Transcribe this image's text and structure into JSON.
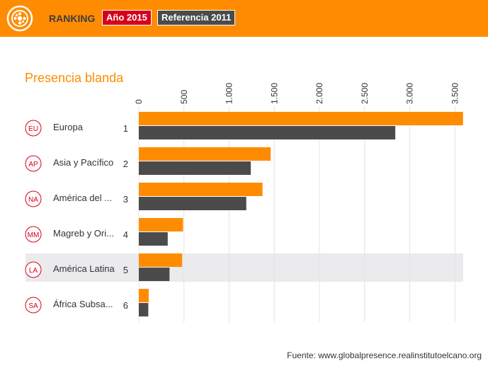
{
  "header": {
    "ranking_label": "RANKING",
    "year_label": "Año 2015",
    "reference_label": "Referencia 2011",
    "background": "#ff8c00",
    "year_color": "#d6001c",
    "reference_color": "#4b4b4b",
    "logo_icon": "globe-dots-icon"
  },
  "source": "Fuente: www.globalpresence.realinstitutoelcano.org",
  "chart_data": {
    "type": "bar",
    "orientation": "horizontal",
    "title": "Presencia blanda",
    "xlim": [
      0,
      3600
    ],
    "ticks": [
      0,
      500,
      1000,
      1500,
      2000,
      2500,
      3000,
      3500
    ],
    "tick_labels": [
      "0",
      "500",
      "1.000",
      "1.500",
      "2.000",
      "2.500",
      "3.000",
      "3.500"
    ],
    "grid": true,
    "highlighted_row": 4,
    "categories": [
      {
        "code": "EU",
        "name": "Europa",
        "rank": "1"
      },
      {
        "code": "AP",
        "name": "Asia y Pacífico",
        "rank": "2"
      },
      {
        "code": "NA",
        "name": "América del ...",
        "rank": "3"
      },
      {
        "code": "MM",
        "name": "Magreb y Ori...",
        "rank": "4"
      },
      {
        "code": "LA",
        "name": "América Latina",
        "rank": "5"
      },
      {
        "code": "SA",
        "name": "África Subsa...",
        "rank": "6"
      }
    ],
    "series": [
      {
        "values": [
          3590,
          1460,
          1370,
          490,
          480,
          110
        ],
        "color": "#ff8c00"
      },
      {
        "values": [
          2840,
          1240,
          1190,
          320,
          340,
          105
        ],
        "color": "#4b4b4b"
      }
    ]
  }
}
